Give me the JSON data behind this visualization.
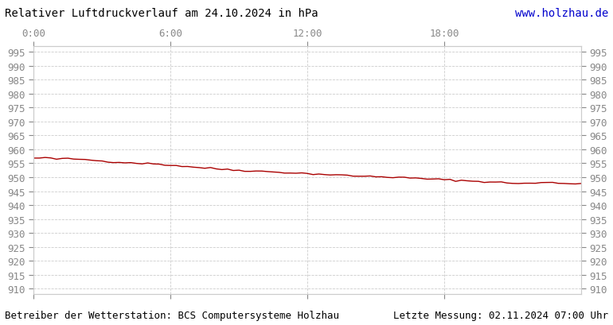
{
  "title": "Relativer Luftdruckverlauf am 24.10.2024 in hPa",
  "url_text": "www.holzhau.de",
  "bottom_left": "Betreiber der Wetterstation: BCS Computersysteme Holzhau",
  "bottom_right": "Letzte Messung: 02.11.2024 07:00 Uhr",
  "xlabel_ticks": [
    "0:00",
    "6:00",
    "12:00",
    "18:00"
  ],
  "xlabel_tick_positions": [
    0,
    6,
    12,
    18
  ],
  "ylim": [
    908,
    997
  ],
  "yticks": [
    910,
    915,
    920,
    925,
    930,
    935,
    940,
    945,
    950,
    955,
    960,
    965,
    970,
    975,
    980,
    985,
    990,
    995
  ],
  "xlim": [
    0,
    24
  ],
  "line_color": "#aa0000",
  "background_color": "#ffffff",
  "plot_bg_color": "#ffffff",
  "grid_color": "#cccccc",
  "text_color": "#888888",
  "title_color": "#000000",
  "url_color": "#0000cc",
  "pressure_x": [
    0.0,
    0.25,
    0.5,
    0.75,
    1.0,
    1.25,
    1.5,
    1.75,
    2.0,
    2.25,
    2.5,
    2.75,
    3.0,
    3.25,
    3.5,
    3.75,
    4.0,
    4.25,
    4.5,
    4.75,
    5.0,
    5.25,
    5.5,
    5.75,
    6.0,
    6.25,
    6.5,
    6.75,
    7.0,
    7.25,
    7.5,
    7.75,
    8.0,
    8.25,
    8.5,
    8.75,
    9.0,
    9.25,
    9.5,
    9.75,
    10.0,
    10.25,
    10.5,
    10.75,
    11.0,
    11.25,
    11.5,
    11.75,
    12.0,
    12.25,
    12.5,
    12.75,
    13.0,
    13.25,
    13.5,
    13.75,
    14.0,
    14.25,
    14.5,
    14.75,
    15.0,
    15.25,
    15.5,
    15.75,
    16.0,
    16.25,
    16.5,
    16.75,
    17.0,
    17.25,
    17.5,
    17.75,
    18.0,
    18.25,
    18.5,
    18.75,
    19.0,
    19.25,
    19.5,
    19.75,
    20.0,
    20.25,
    20.5,
    20.75,
    21.0,
    21.25,
    21.5,
    21.75,
    22.0,
    22.25,
    22.5,
    22.75,
    23.0,
    23.25,
    23.5,
    23.75,
    24.0
  ],
  "pressure_y": [
    956.8,
    956.9,
    957.0,
    956.7,
    956.5,
    956.8,
    956.6,
    956.4,
    956.5,
    956.3,
    956.2,
    956.0,
    955.8,
    955.7,
    955.5,
    955.4,
    955.3,
    955.2,
    955.1,
    955.0,
    954.9,
    954.8,
    954.7,
    954.5,
    954.3,
    954.2,
    954.0,
    953.8,
    953.7,
    953.5,
    953.3,
    953.2,
    953.0,
    952.9,
    952.8,
    952.6,
    952.5,
    952.4,
    952.3,
    952.2,
    952.1,
    952.0,
    951.9,
    951.8,
    951.7,
    951.6,
    951.5,
    951.4,
    951.3,
    951.2,
    951.1,
    951.0,
    950.9,
    950.8,
    950.7,
    950.6,
    950.5,
    950.4,
    950.3,
    950.3,
    950.2,
    950.2,
    950.1,
    950.0,
    949.9,
    949.8,
    949.7,
    949.6,
    949.5,
    949.4,
    949.3,
    949.2,
    949.1,
    949.0,
    948.9,
    948.8,
    948.7,
    948.6,
    948.5,
    948.4,
    948.3,
    948.2,
    948.1,
    948.0,
    947.9,
    947.8,
    947.7,
    947.8,
    947.9,
    948.0,
    948.1,
    948.0,
    947.9,
    947.8,
    947.7,
    947.8,
    947.7
  ]
}
